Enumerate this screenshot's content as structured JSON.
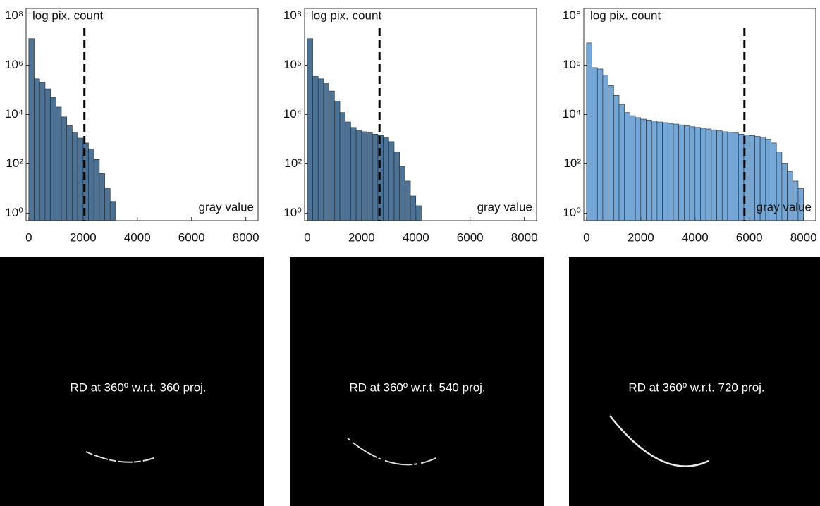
{
  "chart_data": [
    {
      "type": "histogram",
      "ylabel": "log pix. count",
      "xlabel": "gray value",
      "color": "#4d7294",
      "threshold": 2050,
      "bins": [
        0,
        200,
        400,
        600,
        800,
        1000,
        1200,
        1400,
        1600,
        1800,
        2000,
        2200,
        2400,
        2600,
        2800,
        3000,
        3200
      ],
      "values": [
        12000000,
        280000,
        200000,
        110000,
        50000,
        20000,
        8000,
        3500,
        1800,
        1100,
        700,
        400,
        150,
        40,
        10,
        3
      ],
      "xlim": [
        -100,
        8450
      ],
      "xticks": [
        0,
        2000,
        4000,
        6000,
        8000
      ],
      "ylim": [
        0.5,
        200000000
      ],
      "ylog": true,
      "yticks": [
        {
          "value": 1,
          "label": "10⁰"
        },
        {
          "value": 100,
          "label": "10²"
        },
        {
          "value": 10000,
          "label": "10⁴"
        },
        {
          "value": 1000000,
          "label": "10⁶"
        },
        {
          "value": 100000000,
          "label": "10⁸"
        }
      ]
    },
    {
      "type": "histogram",
      "ylabel": "log pix. count",
      "xlabel": "gray value",
      "color": "#4d7294",
      "threshold": 2660,
      "bins": [
        0,
        200,
        400,
        600,
        800,
        1000,
        1200,
        1400,
        1600,
        1800,
        2000,
        2200,
        2400,
        2600,
        2800,
        3000,
        3200,
        3400,
        3600,
        3800,
        4000,
        4200
      ],
      "values": [
        12000000,
        350000,
        280000,
        180000,
        90000,
        35000,
        12000,
        5000,
        3000,
        2300,
        2000,
        1800,
        1600,
        1400,
        1200,
        800,
        300,
        80,
        20,
        5,
        2
      ],
      "xlim": [
        -100,
        8450
      ],
      "xticks": [
        0,
        2000,
        4000,
        6000,
        8000
      ],
      "ylim": [
        0.5,
        200000000
      ],
      "ylog": true,
      "yticks": [
        {
          "value": 1,
          "label": "10⁰"
        },
        {
          "value": 100,
          "label": "10²"
        },
        {
          "value": 10000,
          "label": "10⁴"
        },
        {
          "value": 1000000,
          "label": "10⁶"
        },
        {
          "value": 100000000,
          "label": "10⁸"
        }
      ]
    },
    {
      "type": "histogram",
      "ylabel": "log pix. count",
      "xlabel": "gray value",
      "color": "#74a6d6",
      "threshold": 5820,
      "bins": [
        0,
        200,
        400,
        600,
        800,
        1000,
        1200,
        1400,
        1600,
        1800,
        2000,
        2200,
        2400,
        2600,
        2800,
        3000,
        3200,
        3400,
        3600,
        3800,
        4000,
        4200,
        4400,
        4600,
        4800,
        5000,
        5200,
        5400,
        5600,
        5800,
        6000,
        6200,
        6400,
        6600,
        6800,
        7000,
        7200,
        7400,
        7600,
        7800,
        8000
      ],
      "values": [
        8000000,
        800000,
        700000,
        400000,
        150000,
        60000,
        25000,
        12000,
        9000,
        7500,
        6500,
        6000,
        5500,
        5000,
        4700,
        4400,
        4100,
        3800,
        3500,
        3200,
        3000,
        2800,
        2600,
        2400,
        2200,
        2000,
        1900,
        1800,
        1600,
        1500,
        1400,
        1300,
        1200,
        1000,
        700,
        300,
        100,
        50,
        20,
        10
      ],
      "xlim": [
        -100,
        8450
      ],
      "xticks": [
        0,
        2000,
        4000,
        6000,
        8000
      ],
      "ylim": [
        0.5,
        200000000
      ],
      "ylog": true,
      "yticks": [
        {
          "value": 1,
          "label": "10⁰"
        },
        {
          "value": 100,
          "label": "10²"
        },
        {
          "value": 10000,
          "label": "10⁴"
        },
        {
          "value": 1000000,
          "label": "10⁶"
        },
        {
          "value": 100000000,
          "label": "10⁸"
        }
      ]
    }
  ],
  "images": [
    {
      "caption": "RD at 360º w.r.t. 360 proj."
    },
    {
      "caption": "RD at 360º w.r.t. 540 proj."
    },
    {
      "caption": "RD at 360º w.r.t. 720 proj."
    }
  ]
}
